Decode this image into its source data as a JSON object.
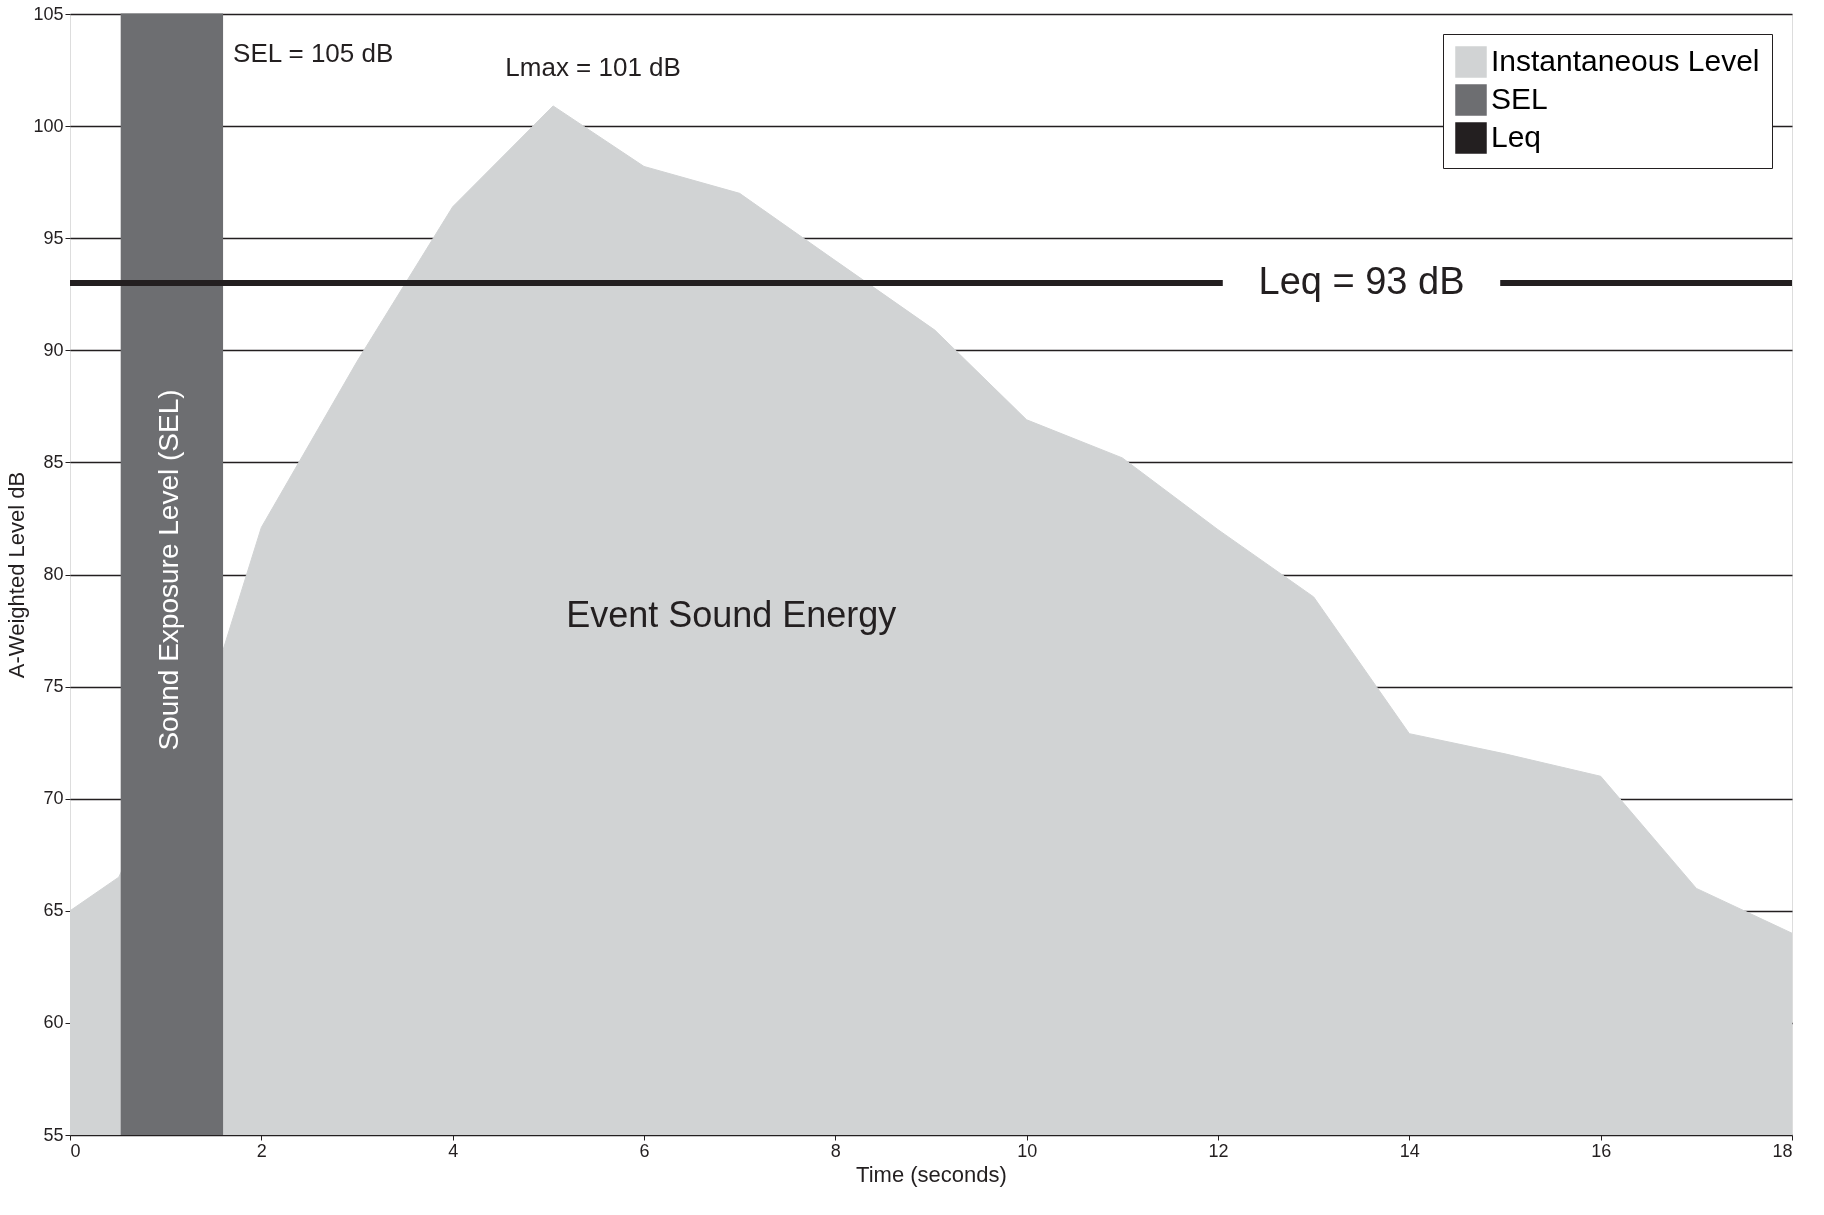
{
  "chart_data": {
    "type": "area",
    "xlabel": "Time (seconds)",
    "ylabel": "A-Weighted Level dB",
    "series": [
      {
        "name": "Instantaneous Level",
        "color": "#d1d3d4",
        "x": [
          0,
          0.51,
          1.59,
          2,
          3,
          4,
          5.05,
          6,
          7,
          8,
          9.04,
          10,
          11,
          12,
          13,
          14,
          15,
          16,
          17,
          18
        ],
        "values": [
          65,
          66.5,
          76.5,
          82.1,
          89.5,
          96.4,
          100.9,
          98.2,
          97,
          94,
          90.9,
          86.9,
          85.2,
          82,
          79,
          72.9,
          72,
          71,
          66,
          64
        ]
      },
      {
        "name": "SEL",
        "color": "#6d6e71",
        "x": [
          0.53,
          1.6
        ],
        "values": [
          105,
          105
        ]
      },
      {
        "name": "Leq",
        "type": "line",
        "color": "#231f20",
        "x": [
          0,
          12.05,
          13.5,
          14.95,
          18
        ],
        "values": [
          93,
          93,
          null,
          93,
          93
        ]
      }
    ],
    "annotations": [
      {
        "text": "Lmax = 101 dB",
        "x": 5.05,
        "y": 100.9
      },
      {
        "text": "SEL = 105 dB",
        "x": 1.6,
        "y": 105
      },
      "Leq = 93 dB",
      "Sound Exposure Level (SEL)",
      "Event Sound Energy"
    ],
    "xlim": [
      0,
      18
    ],
    "xticks": [
      0,
      2,
      4,
      6,
      8,
      10,
      12,
      14,
      16,
      18
    ],
    "ylim": [
      55,
      105
    ],
    "yticks": [
      55,
      60,
      65,
      70,
      75,
      80,
      85,
      90,
      95,
      100,
      105
    ],
    "grid": "y",
    "legend": "top right"
  }
}
